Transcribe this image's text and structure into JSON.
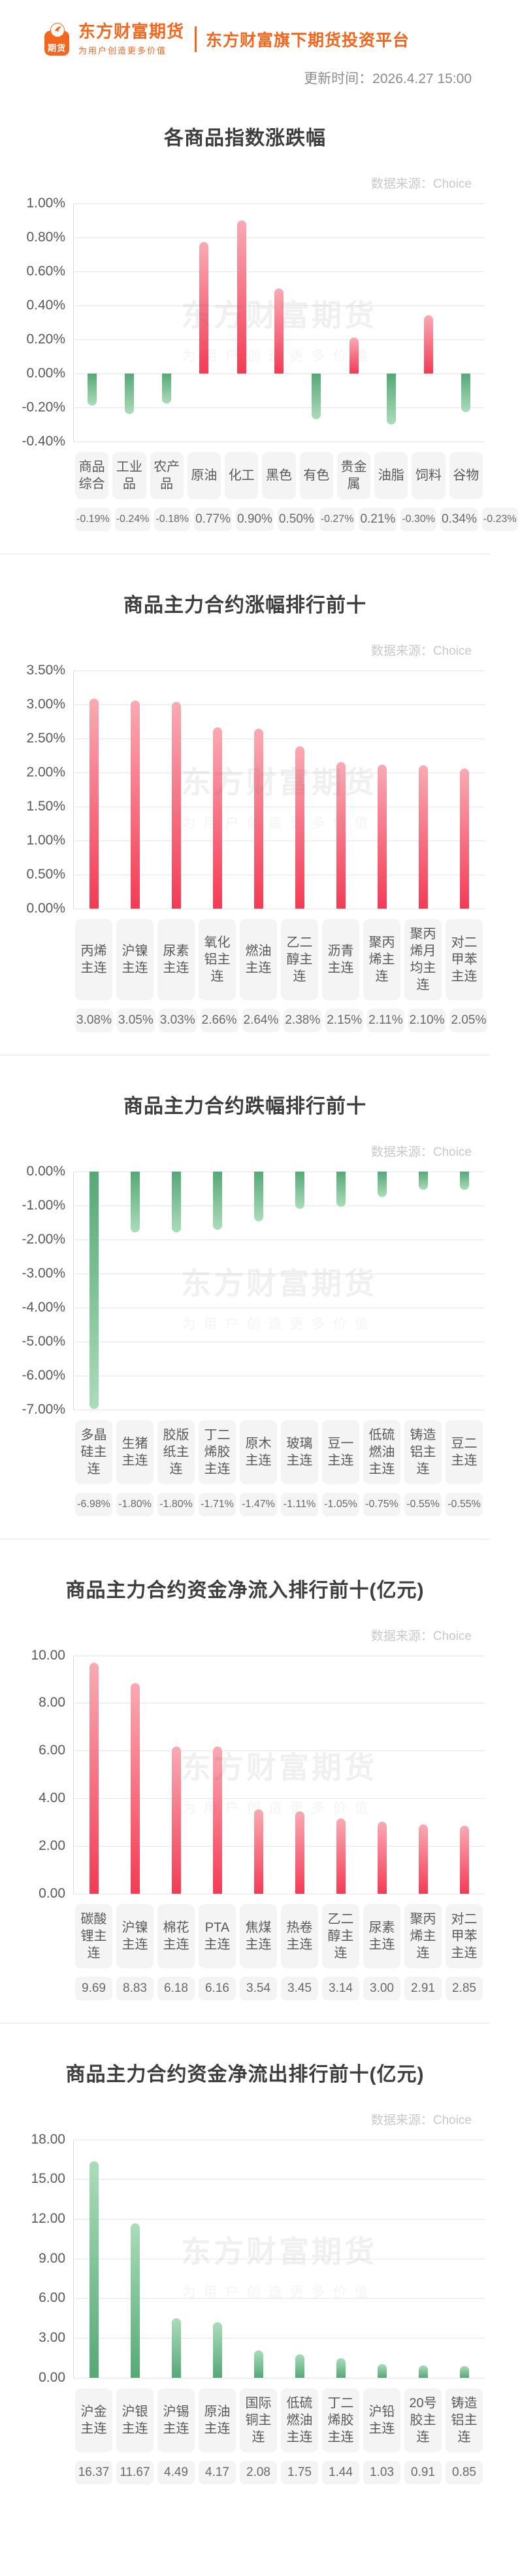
{
  "header": {
    "logo_badge": "期货",
    "brand_name": "东方财富期货",
    "brand_slogan": "为用户创造更多价值",
    "tagline": "东方财富旗下期货投资平台",
    "update_time": "更新时间：2026.4.27 15:00"
  },
  "watermark": {
    "line1": "东方财富期货",
    "line2": "为用户创造更多价值"
  },
  "colors": {
    "brand_orange": "#f2671f",
    "bar_red": "#f43b55",
    "bar_red_light": "#f9aab3",
    "bar_green": "#55a976",
    "bar_green_light": "#abdcba",
    "grid": "#e6e6e6",
    "label_bg": "#f4f4f4",
    "title_text": "#3d3d3d",
    "source_text": "#c9c9c9"
  },
  "chart_data": [
    {
      "type": "bar",
      "title": "各商品指数涨跌幅",
      "source": "数据来源：Choice",
      "unit": "%",
      "grid": true,
      "legend": false,
      "palette": "auto",
      "categories": [
        "商品综合",
        "工业品",
        "农产品",
        "原油",
        "化工",
        "黑色",
        "有色",
        "贵金属",
        "油脂",
        "饲料",
        "谷物"
      ],
      "values": [
        -0.19,
        -0.24,
        -0.18,
        0.77,
        0.9,
        0.5,
        -0.27,
        0.21,
        -0.3,
        0.34,
        -0.23
      ],
      "value_labels": [
        "-0.19%",
        "-0.24%",
        "-0.18%",
        "0.77%",
        "0.90%",
        "0.50%",
        "-0.27%",
        "0.21%",
        "-0.30%",
        "0.34%",
        "-0.23%"
      ],
      "ylim": [
        -0.4,
        1.0
      ],
      "ytick_step": 0.2,
      "ytick_labels": [
        "1.00%",
        "0.80%",
        "0.60%",
        "0.40%",
        "0.20%",
        "0.00%",
        "-0.20%",
        "-0.40%"
      ]
    },
    {
      "type": "bar",
      "title": "商品主力合约涨幅排行前十",
      "source": "数据来源：Choice",
      "unit": "%",
      "grid": true,
      "legend": false,
      "palette": "red",
      "categories": [
        "丙烯主连",
        "沪镍主连",
        "尿素主连",
        "氧化铝主连",
        "燃油主连",
        "乙二醇主连",
        "沥青主连",
        "聚丙烯主连",
        "聚丙烯月均主连",
        "对二甲苯主连"
      ],
      "values": [
        3.08,
        3.05,
        3.03,
        2.66,
        2.64,
        2.38,
        2.15,
        2.11,
        2.1,
        2.05
      ],
      "value_labels": [
        "3.08%",
        "3.05%",
        "3.03%",
        "2.66%",
        "2.64%",
        "2.38%",
        "2.15%",
        "2.11%",
        "2.10%",
        "2.05%"
      ],
      "ylim": [
        0.0,
        3.5
      ],
      "ytick_step": 0.5,
      "ytick_labels": [
        "3.50%",
        "3.00%",
        "2.50%",
        "2.00%",
        "1.50%",
        "1.00%",
        "0.50%",
        "0.00%"
      ]
    },
    {
      "type": "bar",
      "title": "商品主力合约跌幅排行前十",
      "source": "数据来源：Choice",
      "unit": "%",
      "grid": true,
      "legend": false,
      "palette": "green",
      "categories": [
        "多晶硅主连",
        "生猪主连",
        "胶版纸主连",
        "丁二烯胶主连",
        "原木主连",
        "玻璃主连",
        "豆一主连",
        "低硫燃油主连",
        "铸造铝主连",
        "豆二主连"
      ],
      "values": [
        -6.98,
        -1.8,
        -1.8,
        -1.71,
        -1.47,
        -1.11,
        -1.05,
        -0.75,
        -0.55,
        -0.55
      ],
      "value_labels": [
        "-6.98%",
        "-1.80%",
        "-1.80%",
        "-1.71%",
        "-1.47%",
        "-1.11%",
        "-1.05%",
        "-0.75%",
        "-0.55%",
        "-0.55%"
      ],
      "ylim": [
        -7.0,
        0.0
      ],
      "ytick_step": 1.0,
      "ytick_labels": [
        "0.00%",
        "-1.00%",
        "-2.00%",
        "-3.00%",
        "-4.00%",
        "-5.00%",
        "-6.00%",
        "-7.00%"
      ]
    },
    {
      "type": "bar",
      "title": "商品主力合约资金净流入排行前十(亿元)",
      "source": "数据来源：Choice",
      "unit": "亿元",
      "grid": true,
      "legend": false,
      "palette": "red",
      "categories": [
        "碳酸锂主连",
        "沪镍主连",
        "棉花主连",
        "PTA主连",
        "焦煤主连",
        "热卷主连",
        "乙二醇主连",
        "尿素主连",
        "聚丙烯主连",
        "对二甲苯主连"
      ],
      "values": [
        9.69,
        8.83,
        6.18,
        6.16,
        3.54,
        3.45,
        3.14,
        3.0,
        2.91,
        2.85
      ],
      "value_labels": [
        "9.69",
        "8.83",
        "6.18",
        "6.16",
        "3.54",
        "3.45",
        "3.14",
        "3.00",
        "2.91",
        "2.85"
      ],
      "ylim": [
        0.0,
        10.0
      ],
      "ytick_step": 2.0,
      "ytick_labels": [
        "10.00",
        "8.00",
        "6.00",
        "4.00",
        "2.00",
        "0.00"
      ]
    },
    {
      "type": "bar",
      "title": "商品主力合约资金净流出排行前十(亿元)",
      "source": "数据来源：Choice",
      "unit": "亿元",
      "grid": true,
      "legend": false,
      "palette": "green",
      "categories": [
        "沪金主连",
        "沪银主连",
        "沪锡主连",
        "原油主连",
        "国际铜主连",
        "低硫燃油主连",
        "丁二烯胶主连",
        "沪铅主连",
        "20号胶主连",
        "铸造铝主连"
      ],
      "values": [
        16.37,
        11.67,
        4.49,
        4.17,
        2.08,
        1.75,
        1.44,
        1.03,
        0.91,
        0.85
      ],
      "value_labels": [
        "16.37",
        "11.67",
        "4.49",
        "4.17",
        "2.08",
        "1.75",
        "1.44",
        "1.03",
        "0.91",
        "0.85"
      ],
      "ylim": [
        0.0,
        18.0
      ],
      "ytick_step": 3.0,
      "ytick_labels": [
        "18.00",
        "15.00",
        "12.00",
        "9.00",
        "6.00",
        "3.00",
        "0.00"
      ]
    }
  ]
}
